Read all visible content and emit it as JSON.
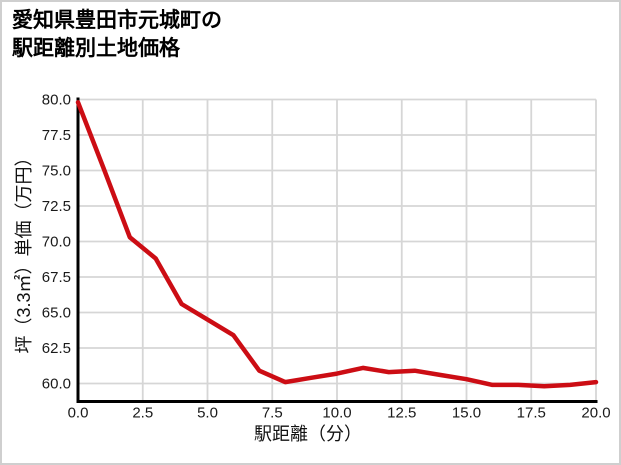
{
  "title": {
    "line1": "愛知県豊田市元城町の",
    "line2": "駅距離別土地価格"
  },
  "chart_data": {
    "type": "line",
    "title": "愛知県豊田市元城町の駅距離別土地価格",
    "xlabel": "駅距離（分）",
    "ylabel": "坪（3.3㎡）単価（万円）",
    "x": [
      0,
      1,
      2,
      3,
      4,
      5,
      6,
      7,
      8,
      9,
      10,
      11,
      12,
      13,
      14,
      15,
      16,
      17,
      18,
      19,
      20
    ],
    "values": [
      79.8,
      75.1,
      70.3,
      68.8,
      65.6,
      64.5,
      63.4,
      60.9,
      60.1,
      60.4,
      60.7,
      61.1,
      60.8,
      60.9,
      60.6,
      60.3,
      59.9,
      59.9,
      59.8,
      59.9,
      60.1
    ],
    "x_ticks": [
      0,
      2.5,
      5,
      7.5,
      10,
      12.5,
      15,
      17.5,
      20
    ],
    "y_ticks": [
      60,
      62.5,
      65,
      67.5,
      70,
      72.5,
      75,
      77.5,
      80
    ],
    "x_tick_labels": [
      "0.0",
      "2.5",
      "5.0",
      "7.5",
      "10.0",
      "12.5",
      "15.0",
      "17.5",
      "20.0"
    ],
    "y_tick_labels": [
      "60.0",
      "62.5",
      "65.0",
      "67.5",
      "70.0",
      "72.5",
      "75.0",
      "77.5",
      "80.0"
    ],
    "xlim": [
      0,
      20
    ],
    "ylim": [
      58.8,
      80
    ],
    "grid": true,
    "legend": "none"
  },
  "colors": {
    "line": "#cc0d14",
    "grid": "#d6d6d6",
    "axis": "#000000",
    "tick_text": "#1a1a1a",
    "background": "#ffffff",
    "border": "#cfcfcf"
  }
}
